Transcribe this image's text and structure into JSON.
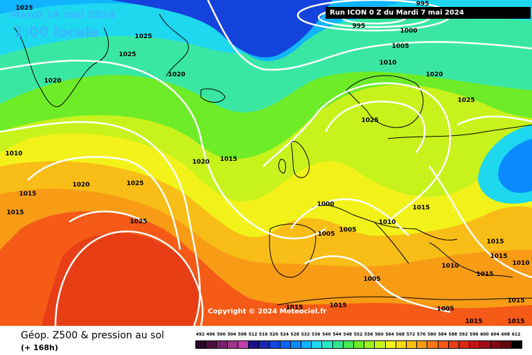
{
  "header": {
    "date": "Mardi 14 mai 2024",
    "time": "2:00 locale",
    "run": "Run ICON 0 Z du Mardi 7 mai 2024"
  },
  "copyright": "Copyright © 2024 Meteociel.fr",
  "footer": {
    "title": "Géop. Z500 & pression au sol",
    "subtitle": "(+ 168h)"
  },
  "legend": {
    "values": [
      "492",
      "496",
      "500",
      "504",
      "508",
      "512",
      "516",
      "520",
      "524",
      "528",
      "532",
      "536",
      "540",
      "544",
      "548",
      "552",
      "556",
      "560",
      "564",
      "568",
      "572",
      "576",
      "580",
      "584",
      "588",
      "592",
      "596",
      "600",
      "604",
      "608",
      "612"
    ],
    "colors": [
      "#2a0a2a",
      "#4e1040",
      "#78206a",
      "#a0348a",
      "#c040b0",
      "#1a0f8c",
      "#1628b4",
      "#1442dc",
      "#0a64ff",
      "#0a8aff",
      "#10b4ff",
      "#1ed8f0",
      "#28e6c0",
      "#32e690",
      "#46e656",
      "#6eec28",
      "#9af020",
      "#c8f21c",
      "#f2f21a",
      "#f5da18",
      "#f8bd17",
      "#f89c16",
      "#f87a16",
      "#f55a16",
      "#e83e16",
      "#d82816",
      "#c01416",
      "#a00c14",
      "#800812",
      "#600610",
      "#000000"
    ]
  },
  "map": {
    "background": "#3ae7a2",
    "contour_color": "#ffffff",
    "coast_color": "#000000",
    "isobar_labels": [
      "1025",
      "995",
      "1000",
      "1025",
      "1025",
      "995",
      "1005",
      "1020",
      "1010",
      "1020",
      "1020",
      "1025",
      "1010",
      "1025",
      "1020",
      "1015",
      "1020",
      "1025",
      "1015",
      "1015",
      "1000",
      "1005",
      "1010",
      "1005",
      "1015",
      "1025",
      "1005",
      "1015",
      "1010",
      "1015",
      "1010",
      "1015",
      "1015",
      "1015",
      "1005",
      "1015",
      "1015",
      "1015"
    ]
  }
}
